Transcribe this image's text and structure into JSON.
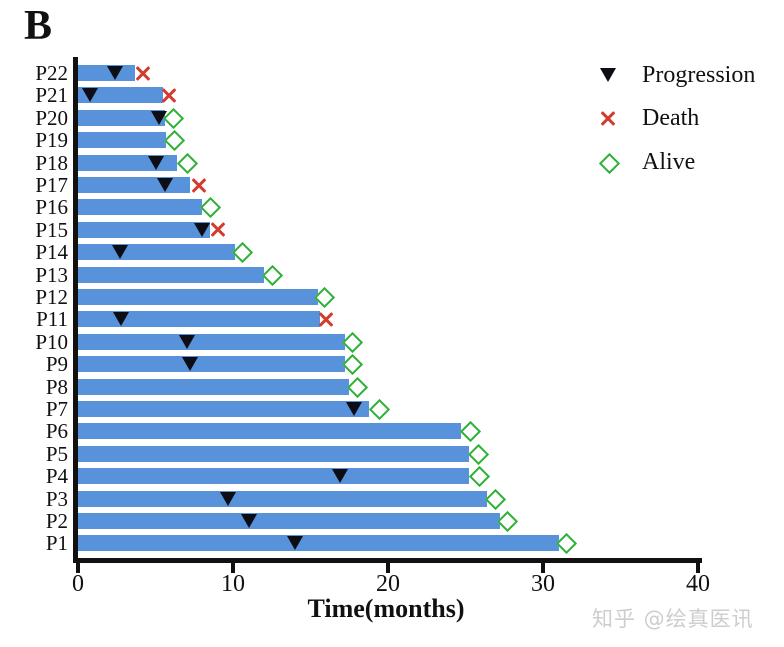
{
  "panel_label": "B",
  "watermark": "知乎 @绘真医讯",
  "colors": {
    "bar": "#5792da",
    "progression_marker": "#0d0d15",
    "death_marker": "#d23b2e",
    "alive_marker": "#2fb137",
    "axis": "#111111",
    "watermark": "#cdcdcd"
  },
  "legend": {
    "items": [
      {
        "marker": "triangle-down-filled",
        "label": "Progression",
        "color": "#0d0d15"
      },
      {
        "marker": "x-cross",
        "label": "Death",
        "color": "#d23b2e"
      },
      {
        "marker": "diamond-open",
        "label": "Alive",
        "color": "#2fb137"
      }
    ]
  },
  "chart_data": {
    "type": "bar",
    "subtype": "swimmer-plot",
    "orientation": "horizontal",
    "title": "",
    "xlabel": "Time(months)",
    "ylabel": "",
    "xlim": [
      0,
      40
    ],
    "xticks": [
      0,
      10,
      20,
      30,
      40
    ],
    "grid": false,
    "legend_position": "upper-right",
    "bar_color": "#5792da",
    "categories_top_to_bottom": [
      "P22",
      "P21",
      "P20",
      "P19",
      "P18",
      "P17",
      "P16",
      "P15",
      "P14",
      "P13",
      "P12",
      "P11",
      "P10",
      "P9",
      "P8",
      "P7",
      "P6",
      "P5",
      "P4",
      "P3",
      "P2",
      "P1"
    ],
    "patients": [
      {
        "id": "P22",
        "bar_months": 3.7,
        "events": {
          "progression": 2.4,
          "death": 4.2
        }
      },
      {
        "id": "P21",
        "bar_months": 5.5,
        "events": {
          "progression": 0.8,
          "death": 5.9
        }
      },
      {
        "id": "P20",
        "bar_months": 5.6,
        "events": {
          "progression": 5.2,
          "alive": 6.1
        }
      },
      {
        "id": "P19",
        "bar_months": 5.7,
        "events": {
          "alive": 6.2
        }
      },
      {
        "id": "P18",
        "bar_months": 6.4,
        "events": {
          "progression": 5.0,
          "alive": 7.0
        }
      },
      {
        "id": "P17",
        "bar_months": 7.2,
        "events": {
          "progression": 5.6,
          "death": 7.8
        }
      },
      {
        "id": "P16",
        "bar_months": 8.0,
        "events": {
          "alive": 8.5
        }
      },
      {
        "id": "P15",
        "bar_months": 8.5,
        "events": {
          "progression": 8.0,
          "death": 9.0
        }
      },
      {
        "id": "P14",
        "bar_months": 10.1,
        "events": {
          "progression": 2.7,
          "alive": 10.6
        }
      },
      {
        "id": "P13",
        "bar_months": 12.0,
        "events": {
          "alive": 12.5
        }
      },
      {
        "id": "P12",
        "bar_months": 15.5,
        "events": {
          "alive": 15.9
        }
      },
      {
        "id": "P11",
        "bar_months": 15.6,
        "events": {
          "progression": 2.8,
          "death": 16.0
        }
      },
      {
        "id": "P10",
        "bar_months": 17.2,
        "events": {
          "progression": 7.0,
          "alive": 17.7
        }
      },
      {
        "id": "P9",
        "bar_months": 17.2,
        "events": {
          "progression": 7.2,
          "alive": 17.7
        }
      },
      {
        "id": "P8",
        "bar_months": 17.5,
        "events": {
          "alive": 18.0
        }
      },
      {
        "id": "P7",
        "bar_months": 18.8,
        "events": {
          "progression": 17.8,
          "alive": 19.4
        }
      },
      {
        "id": "P6",
        "bar_months": 24.7,
        "events": {
          "alive": 25.3
        }
      },
      {
        "id": "P5",
        "bar_months": 25.2,
        "events": {
          "alive": 25.8
        }
      },
      {
        "id": "P4",
        "bar_months": 25.2,
        "events": {
          "progression": 16.9,
          "alive": 25.9
        }
      },
      {
        "id": "P3",
        "bar_months": 26.4,
        "events": {
          "progression": 9.7,
          "alive": 26.9
        }
      },
      {
        "id": "P2",
        "bar_months": 27.2,
        "events": {
          "progression": 11.0,
          "alive": 27.7
        }
      },
      {
        "id": "P1",
        "bar_months": 31.0,
        "events": {
          "progression": 14.0,
          "alive": 31.5
        }
      }
    ]
  }
}
